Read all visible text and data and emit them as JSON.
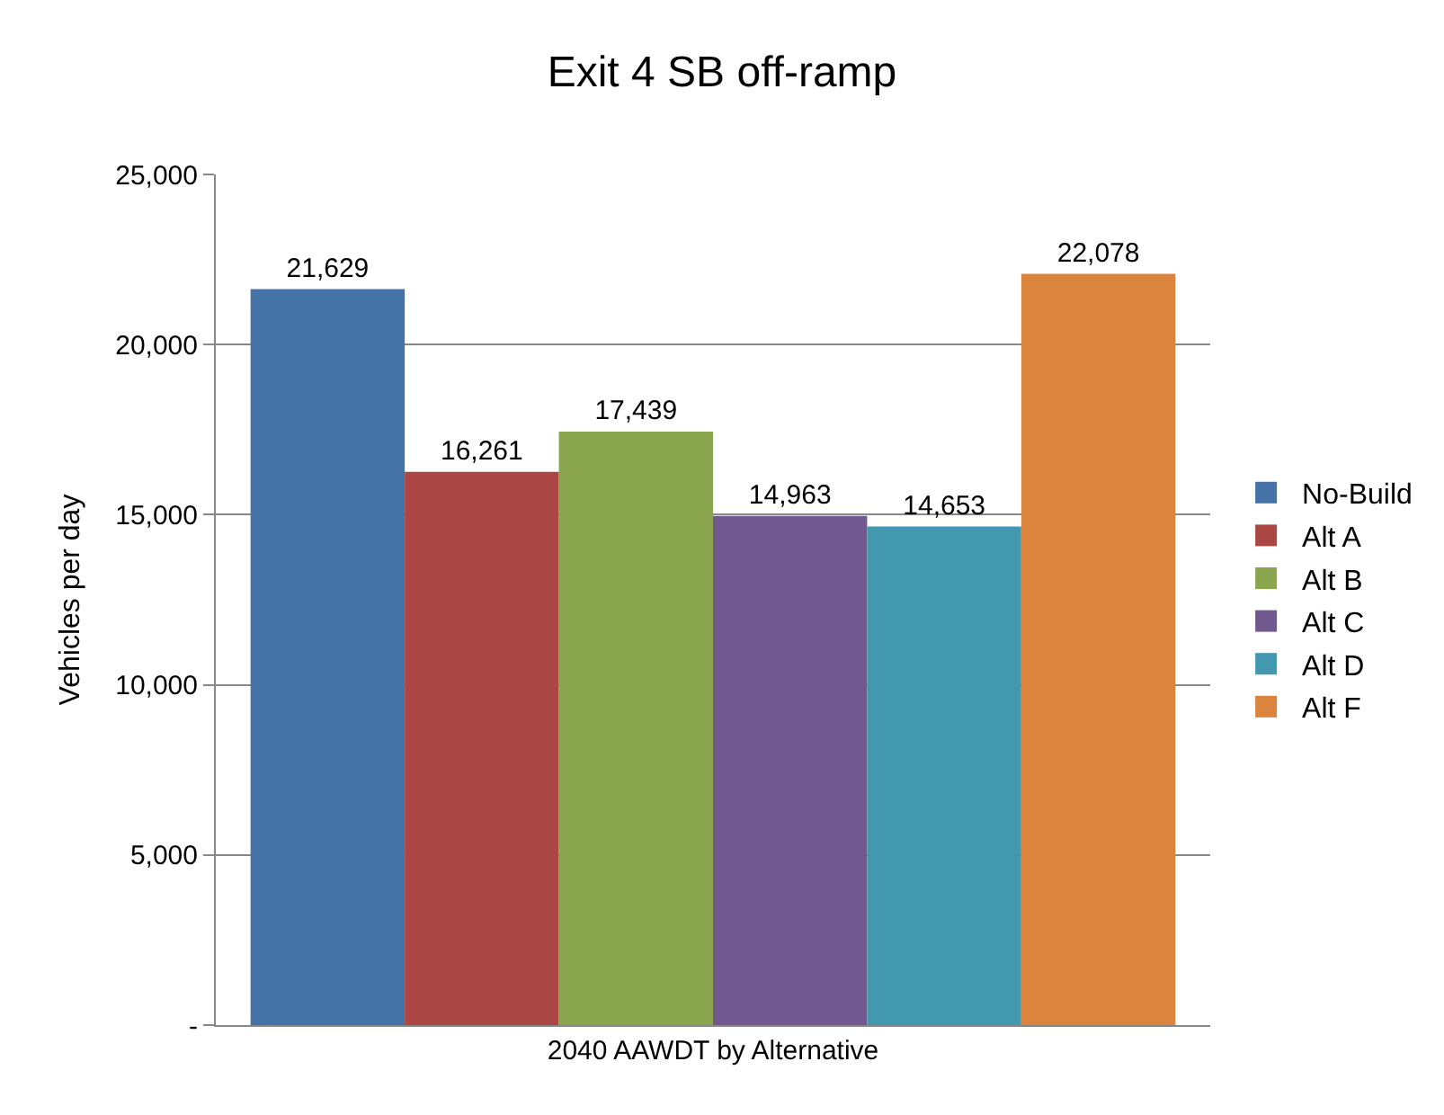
{
  "chart_data": {
    "type": "bar",
    "title": "Exit 4 SB off-ramp",
    "ylabel": "Vehicles per day",
    "categories": [
      "2040 AAWDT by Alternative"
    ],
    "series": [
      {
        "name": "No-Build",
        "color": "#4572a7",
        "values": [
          21629
        ],
        "value_labels": [
          "21,629"
        ]
      },
      {
        "name": "Alt A",
        "color": "#aa4643",
        "values": [
          16261
        ],
        "value_labels": [
          "16,261"
        ]
      },
      {
        "name": "Alt B",
        "color": "#89a54e",
        "values": [
          17439
        ],
        "value_labels": [
          "17,439"
        ]
      },
      {
        "name": "Alt C",
        "color": "#71588f",
        "values": [
          14963
        ],
        "value_labels": [
          "14,963"
        ]
      },
      {
        "name": "Alt D",
        "color": "#4198af",
        "values": [
          14653
        ],
        "value_labels": [
          "14,653"
        ]
      },
      {
        "name": "Alt F",
        "color": "#db843d",
        "values": [
          22078
        ],
        "value_labels": [
          "22,078"
        ]
      }
    ],
    "ylim": [
      0,
      25000
    ],
    "yticks": [
      {
        "value": 0,
        "label": "-"
      },
      {
        "value": 5000,
        "label": "5,000"
      },
      {
        "value": 10000,
        "label": "10,000"
      },
      {
        "value": 15000,
        "label": "15,000"
      },
      {
        "value": 20000,
        "label": "20,000"
      },
      {
        "value": 25000,
        "label": "25,000"
      }
    ],
    "grid": "y",
    "legend": "right"
  }
}
